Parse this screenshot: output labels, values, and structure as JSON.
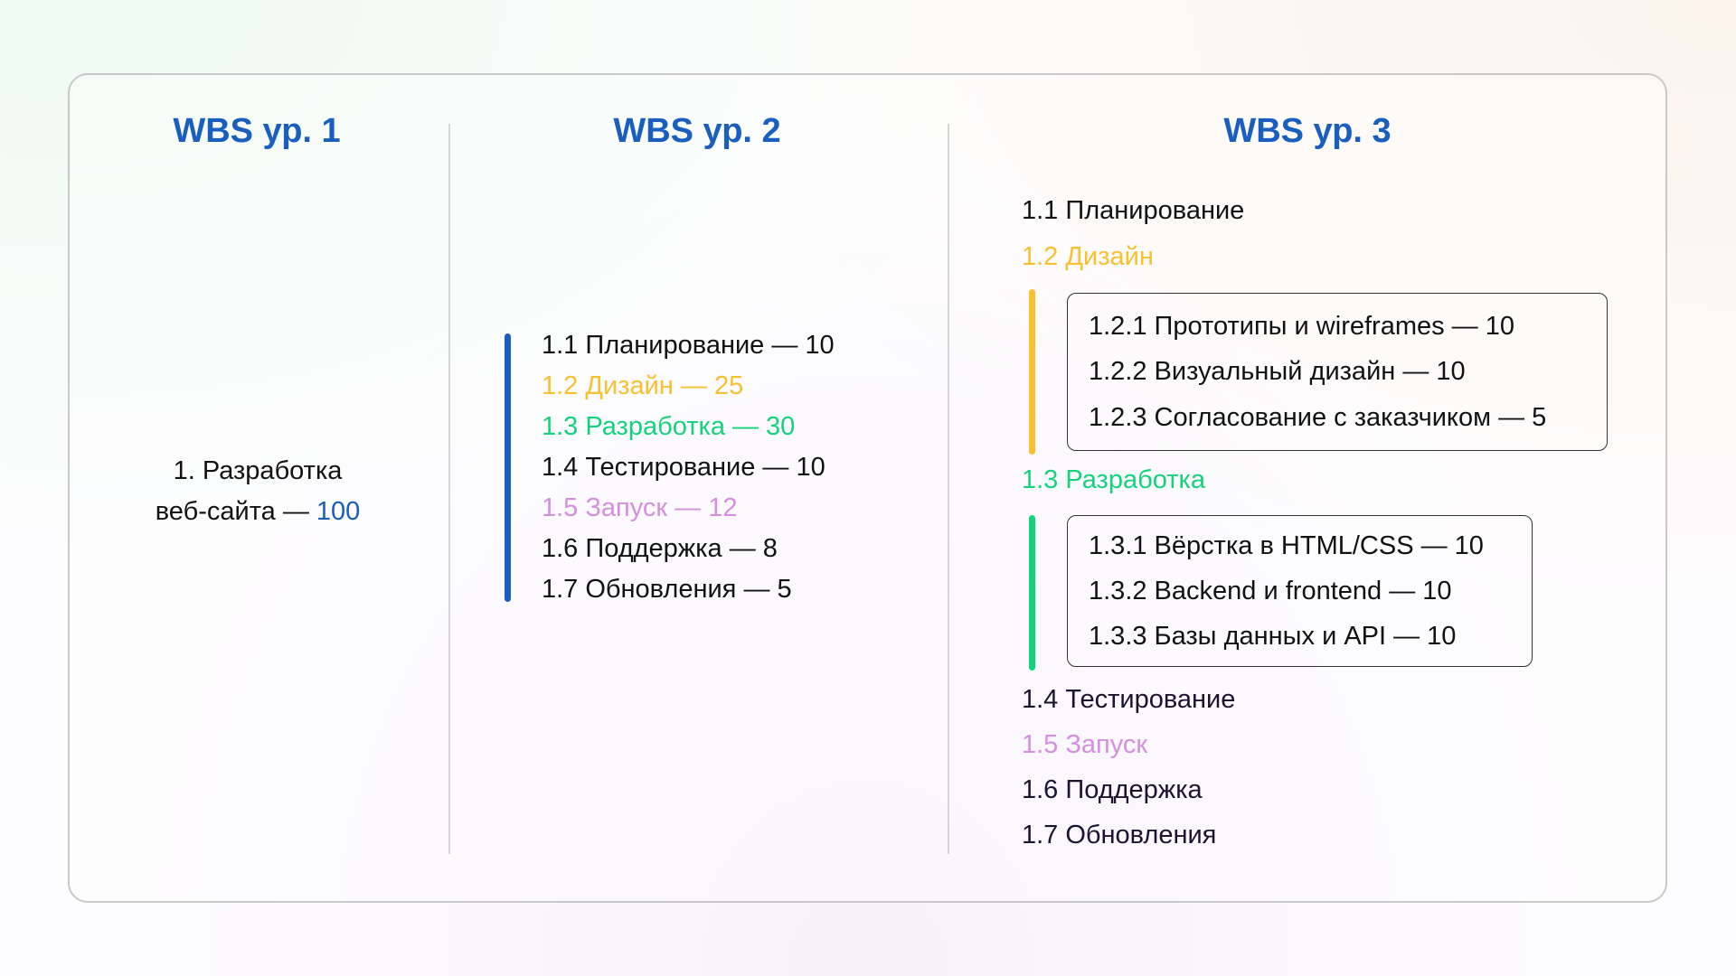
{
  "colors": {
    "blue": "#1a5fbf",
    "yellow": "#f7c132",
    "green": "#17d27c",
    "purple": "#d48fe0"
  },
  "headings": [
    "WBS ур. 1",
    "WBS ур. 2",
    "WBS ур. 3"
  ],
  "level1": {
    "line1": "1. Разработка",
    "line2": "веб-сайта  —",
    "value": "100"
  },
  "level2": [
    "1.1 Планирование —  10",
    "1.2 Дизайн  — 25",
    "1.3 Разработка — 30",
    "1.4 Тестирование — 10",
    "1.5 Запуск — 12",
    "1.6 Поддержка — 8",
    "1.7 Обновления — 5"
  ],
  "level3": {
    "items": [
      "1.1 Планирование",
      "1.2 Дизайн",
      "1.3 Разработка",
      "1.4 Тестирование",
      "1.5 Запуск",
      "1.6 Поддержка",
      "1.7 Обновления"
    ],
    "design_sub": [
      "1.2.1 Прототипы и wireframes — 10",
      "1.2.2 Визуальный дизайн — 10",
      "1.2.3 Согласование с заказчиком — 5"
    ],
    "dev_sub": [
      "1.3.1 Вёрстка в HTML/CSS — 10",
      "1.3.2 Backend и frontend — 10",
      "1.3.3 Базы данных и API — 10"
    ]
  }
}
